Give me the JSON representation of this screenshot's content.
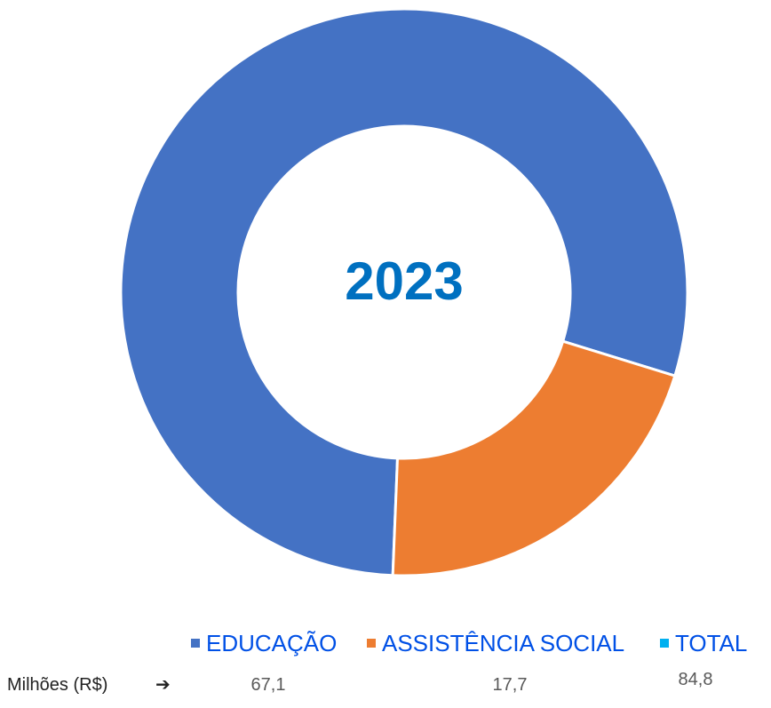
{
  "chart_data": {
    "type": "pie",
    "center_label": "2023",
    "categories": [
      "EDUCAÇÃO",
      "ASSISTÊNCIA SOCIAL",
      "TOTAL"
    ],
    "values": [
      67.1,
      17.7,
      84.8
    ],
    "value_labels": [
      "67,1",
      "17,7",
      "84,8"
    ],
    "colors": [
      "#4472C4",
      "#ED7D31",
      "#00B0F0"
    ],
    "legend_position": "bottom",
    "row_label": "Milhões (R$)",
    "row_arrow": "➔"
  }
}
